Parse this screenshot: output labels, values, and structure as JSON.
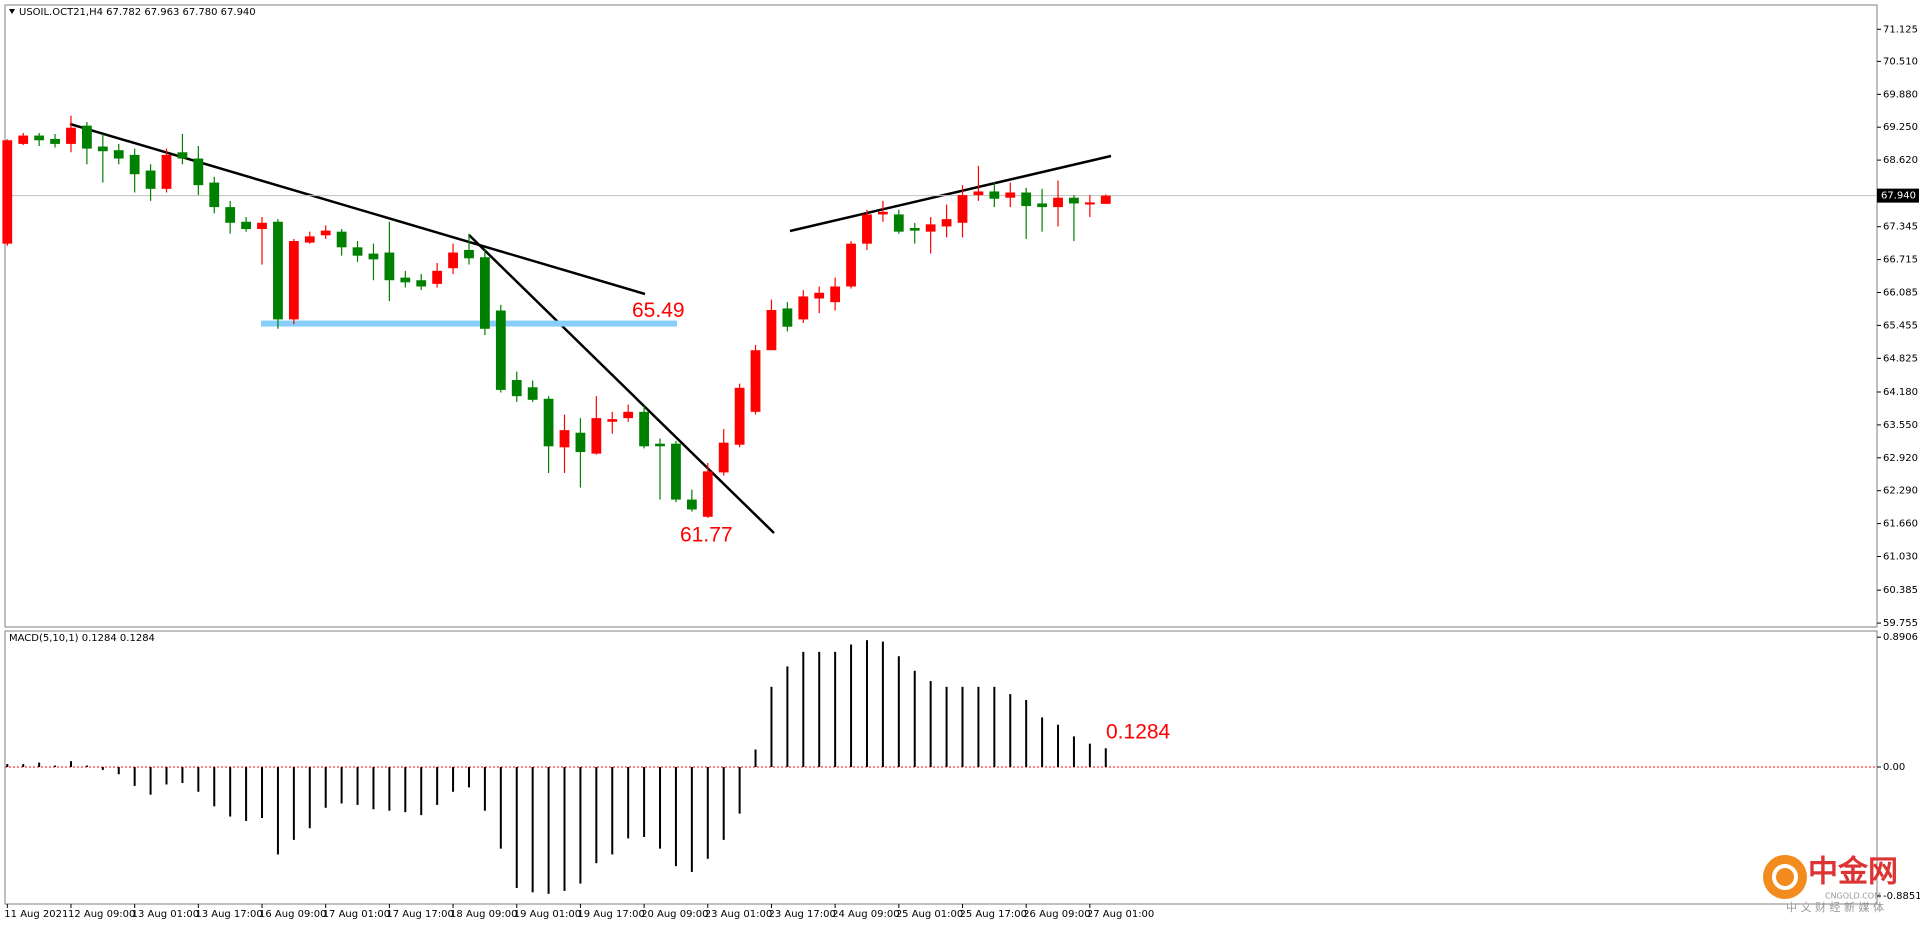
{
  "chart_data": {
    "type": "candlestick",
    "header": "USOIL.OCT21,H4  67.782 67.963 67.780 67.940",
    "categories": [
      "11 Aug 2021",
      null,
      null,
      null,
      "12 Aug 09:00",
      null,
      null,
      null,
      "13 Aug 01:00",
      null,
      null,
      null,
      "13 Aug 17:00",
      null,
      null,
      null,
      "16 Aug 09:00",
      null,
      null,
      null,
      "17 Aug 01:00",
      null,
      null,
      null,
      "17 Aug 17:00",
      null,
      null,
      null,
      "18 Aug 09:00",
      null,
      null,
      null,
      "19 Aug 01:00",
      null,
      null,
      null,
      "19 Aug 17:00",
      null,
      null,
      null,
      "20 Aug 09:00",
      null,
      null,
      null,
      "23 Aug 01:00",
      null,
      null,
      null,
      "23 Aug 17:00",
      null,
      null,
      null,
      "24 Aug 09:00",
      null,
      null,
      null,
      "25 Aug 01:00",
      null,
      null,
      null,
      "25 Aug 17:00",
      null,
      null,
      null,
      "26 Aug 09:00",
      null,
      null,
      null,
      "27 Aug 01:00",
      null
    ],
    "open": [
      67.02,
      68.93,
      69.09,
      69.025,
      68.93,
      69.28,
      68.88,
      68.81,
      68.72,
      68.42,
      68.07,
      68.77,
      68.65,
      68.19,
      67.72,
      67.44,
      67.3,
      67.44,
      65.57,
      67.04,
      67.18,
      67.25,
      66.95,
      66.83,
      66.85,
      66.37,
      66.32,
      66.25,
      66.55,
      66.9,
      66.76,
      65.74,
      64.41,
      64.27,
      64.05,
      63.12,
      63.4,
      63.0,
      63.61,
      63.68,
      63.8,
      63.19,
      63.19,
      62.12,
      61.79,
      62.64,
      63.17,
      63.8,
      64.98,
      65.78,
      65.57,
      65.97,
      65.9,
      66.2,
      67.02,
      67.58,
      67.58,
      67.32,
      67.25,
      67.35,
      67.42,
      67.95,
      68.02,
      67.9,
      68.0,
      67.79,
      67.72,
      67.9,
      67.77,
      67.782
    ],
    "high": [
      69.02,
      69.14,
      69.14,
      69.12,
      69.47,
      69.35,
      69.12,
      68.93,
      68.84,
      68.54,
      68.84,
      69.12,
      68.89,
      68.3,
      67.84,
      67.53,
      67.53,
      67.49,
      67.11,
      67.25,
      67.37,
      67.3,
      67.07,
      67.02,
      67.44,
      66.5,
      66.44,
      66.65,
      67.02,
      67.21,
      66.9,
      65.85,
      64.57,
      64.4,
      64.1,
      63.75,
      63.68,
      64.1,
      63.8,
      63.94,
      63.92,
      63.29,
      63.24,
      62.31,
      62.82,
      63.47,
      64.34,
      65.08,
      65.95,
      65.9,
      66.13,
      66.2,
      66.37,
      67.07,
      67.67,
      67.84,
      67.67,
      67.42,
      67.53,
      67.77,
      68.14,
      68.51,
      68.19,
      68.19,
      68.09,
      68.07,
      68.23,
      67.95,
      67.95,
      67.963
    ],
    "low": [
      66.98,
      68.91,
      68.89,
      68.86,
      68.77,
      68.54,
      68.19,
      68.54,
      68.0,
      67.84,
      68.0,
      68.54,
      67.95,
      67.6,
      67.21,
      67.25,
      66.62,
      65.39,
      65.48,
      67.02,
      67.11,
      66.79,
      66.67,
      66.32,
      65.92,
      66.18,
      66.13,
      66.18,
      66.44,
      66.62,
      65.27,
      64.17,
      63.99,
      63.99,
      62.63,
      62.63,
      62.35,
      62.98,
      63.38,
      63.61,
      63.1,
      62.12,
      62.07,
      61.89,
      61.77,
      62.58,
      63.12,
      63.75,
      64.99,
      65.34,
      65.5,
      65.69,
      65.74,
      66.16,
      66.9,
      67.44,
      67.21,
      67.02,
      66.83,
      67.14,
      67.14,
      67.84,
      67.72,
      67.72,
      67.11,
      67.25,
      67.35,
      67.07,
      67.53,
      67.78
    ],
    "close": [
      69.0,
      69.09,
      69.0,
      68.93,
      69.24,
      68.84,
      68.79,
      68.65,
      68.35,
      68.07,
      68.72,
      68.65,
      68.14,
      67.72,
      67.42,
      67.3,
      67.42,
      65.57,
      67.07,
      67.16,
      67.27,
      66.95,
      66.79,
      66.72,
      66.32,
      66.28,
      66.2,
      66.5,
      66.85,
      66.74,
      65.39,
      64.22,
      64.1,
      64.03,
      63.14,
      63.45,
      63.03,
      63.68,
      63.66,
      63.8,
      63.14,
      63.14,
      62.12,
      61.93,
      62.66,
      63.21,
      64.26,
      64.98,
      65.75,
      65.43,
      66.01,
      66.08,
      66.2,
      67.02,
      67.58,
      67.63,
      67.25,
      67.27,
      67.39,
      67.49,
      67.95,
      68.02,
      67.88,
      68.0,
      67.74,
      67.72,
      67.9,
      67.79,
      67.81,
      67.94
    ],
    "up_color": "#ff0000",
    "down_color": "#008000",
    "ylim": [
      59.68,
      71.59
    ],
    "yticks": [
      71.125,
      {
        "value": 70.51,
        "label": "70.510"
      },
      {
        "value": 69.88,
        "label": "69.880"
      },
      {
        "value": 69.25,
        "label": "69.250"
      },
      {
        "value": 68.62,
        "label": "68.620"
      },
      67.345,
      66.715,
      {
        "value": 66.085,
        "label": "66.085"
      },
      65.455,
      64.825,
      {
        "value": 64.18,
        "label": "64.180"
      },
      {
        "value": 63.55,
        "label": "63.550"
      },
      {
        "value": 62.92,
        "label": "62.920"
      },
      {
        "value": 62.29,
        "label": "62.290"
      },
      {
        "value": 61.66,
        "label": "61.660"
      },
      {
        "value": 61.03,
        "label": "61.030"
      },
      60.385,
      59.755
    ],
    "current_price": {
      "value": 67.94,
      "label": "67.940"
    },
    "annotations": [
      65.49,
      61.77
    ],
    "macd": {
      "title": "MACD(5,10,1) 0.1284 0.1284",
      "values": [
        0.02,
        0.02,
        0.03,
        0.01,
        0.04,
        0.01,
        -0.02,
        -0.05,
        -0.13,
        -0.19,
        -0.12,
        -0.11,
        -0.17,
        -0.27,
        -0.34,
        -0.37,
        -0.35,
        -0.6,
        -0.5,
        -0.42,
        -0.28,
        -0.25,
        -0.26,
        -0.29,
        -0.3,
        -0.31,
        -0.33,
        -0.26,
        -0.17,
        -0.14,
        -0.3,
        -0.56,
        -0.83,
        -0.86,
        -0.87,
        -0.85,
        -0.8,
        -0.66,
        -0.6,
        -0.49,
        -0.48,
        -0.56,
        -0.68,
        -0.72,
        -0.63,
        -0.5,
        -0.32,
        0.12,
        0.55,
        0.69,
        0.79,
        0.79,
        0.79,
        0.84,
        0.87,
        0.86,
        0.76,
        0.66,
        0.59,
        0.55,
        0.55,
        0.55,
        0.55,
        0.5,
        0.46,
        0.34,
        0.29,
        0.21,
        0.16,
        0.1284
      ],
      "color": "#000000",
      "ylim": [
        -0.94,
        0.933
      ],
      "yticks": [
        0.8906,
        {
          "value": 0,
          "label": "0.00"
        },
        -0.8851
      ]
    },
    "watermark": {
      "name": "中金网",
      "site": "CNGOLD.COM",
      "slogan": "中 文 财 经 新 媒 体"
    }
  }
}
